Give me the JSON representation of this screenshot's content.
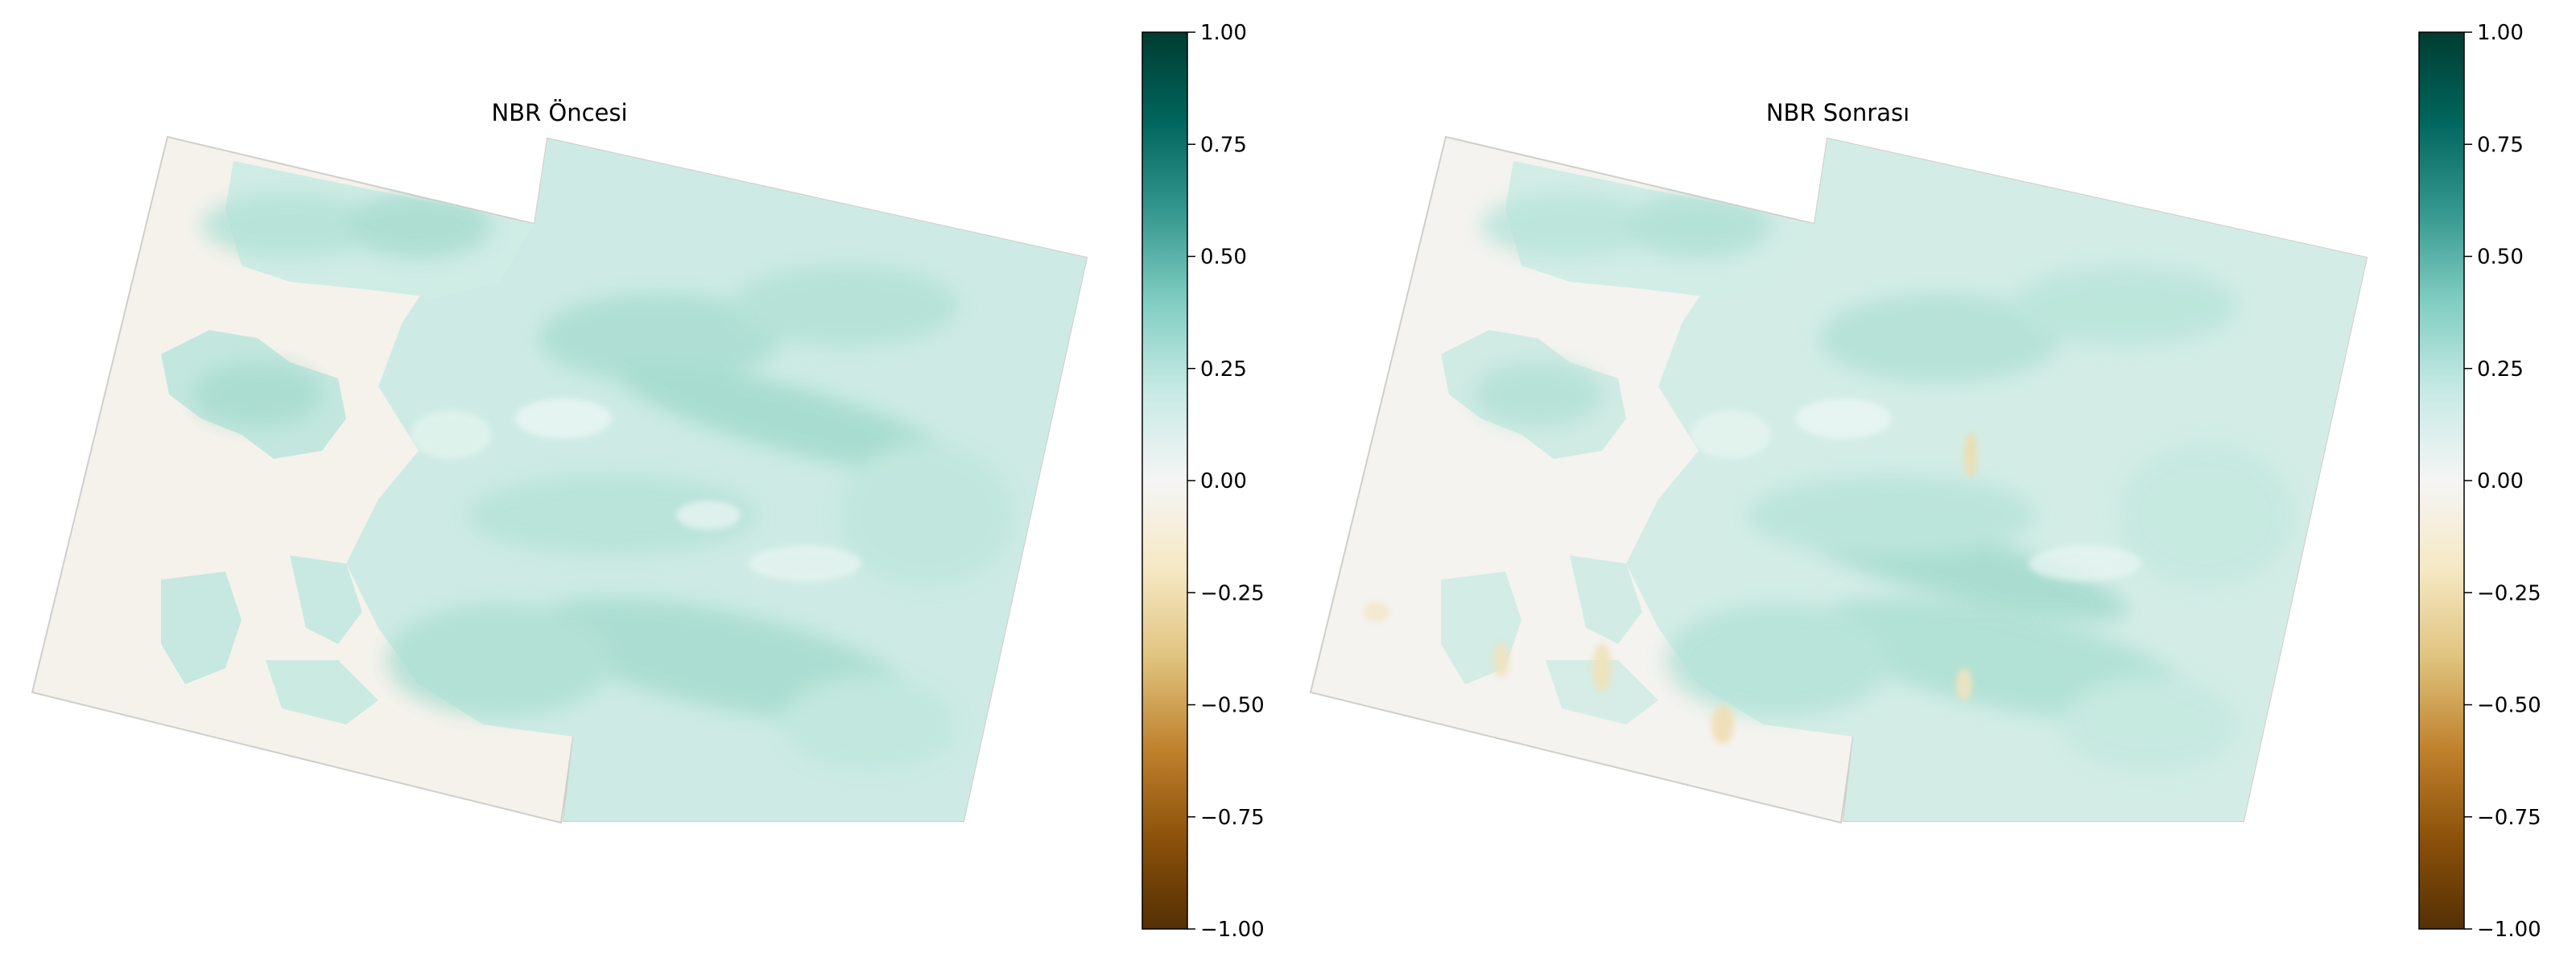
{
  "panels": [
    {
      "title": "NBR Öncesi",
      "colorbar": {
        "colormap": "BrBG",
        "range": [
          -1.0,
          1.0
        ],
        "tick_labels": [
          "1.00",
          "0.75",
          "0.50",
          "0.25",
          "0.00",
          "−0.25",
          "−0.50",
          "−0.75",
          "−1.00"
        ]
      }
    },
    {
      "title": "NBR Sonrası",
      "colorbar": {
        "colormap": "BrBG",
        "range": [
          -1.0,
          1.0
        ],
        "tick_labels": [
          "1.00",
          "0.75",
          "0.50",
          "0.25",
          "0.00",
          "−0.25",
          "−0.50",
          "−0.75",
          "−1.00"
        ]
      }
    }
  ],
  "colors": {
    "no_data_fill": "#f5f2ec",
    "land_light": "#dcf1ec",
    "land_mid": "#b9e4db",
    "land_dark": "#8fd0c2",
    "burn_tint": "#f1e3bf"
  }
}
